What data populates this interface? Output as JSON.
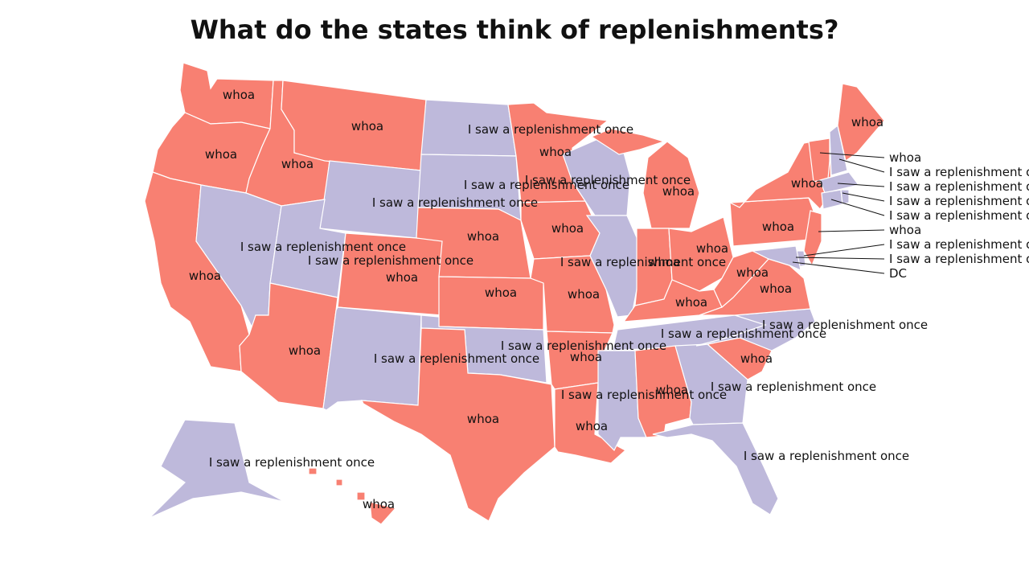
{
  "title": "What do the states think of replenishments?",
  "colors": {
    "whoa": "#F88072",
    "replenishment": "#BEB9DB",
    "border": "#ffffff",
    "text": "#111111"
  },
  "answers": {
    "whoa": "whoa",
    "replenishment": "I saw a replenishment once"
  },
  "callout_labels": [
    "whoa",
    "I saw a replenishment once",
    "I saw a replenishment once",
    "I saw a replenishment once",
    "I saw a replenishment once",
    "whoa",
    "I saw a replenishment once",
    "I saw a replenishment once",
    "DC"
  ],
  "states": [
    {
      "name": "WA",
      "category": "whoa"
    },
    {
      "name": "OR",
      "category": "whoa"
    },
    {
      "name": "CA",
      "category": "whoa"
    },
    {
      "name": "ID",
      "category": "whoa"
    },
    {
      "name": "NV",
      "category": "replenishment"
    },
    {
      "name": "MT",
      "category": "whoa"
    },
    {
      "name": "WY",
      "category": "replenishment"
    },
    {
      "name": "UT",
      "category": "replenishment"
    },
    {
      "name": "CO",
      "category": "whoa"
    },
    {
      "name": "AZ",
      "category": "whoa"
    },
    {
      "name": "NM",
      "category": "replenishment"
    },
    {
      "name": "ND",
      "category": "replenishment"
    },
    {
      "name": "SD",
      "category": "replenishment"
    },
    {
      "name": "NE",
      "category": "whoa"
    },
    {
      "name": "KS",
      "category": "whoa"
    },
    {
      "name": "OK",
      "category": "replenishment"
    },
    {
      "name": "TX",
      "category": "whoa"
    },
    {
      "name": "MN",
      "category": "whoa"
    },
    {
      "name": "IA",
      "category": "whoa"
    },
    {
      "name": "MO",
      "category": "whoa"
    },
    {
      "name": "AR",
      "category": "whoa"
    },
    {
      "name": "LA",
      "category": "whoa"
    },
    {
      "name": "WI",
      "category": "replenishment"
    },
    {
      "name": "IL",
      "category": "replenishment"
    },
    {
      "name": "MI",
      "category": "whoa"
    },
    {
      "name": "IN",
      "category": "whoa"
    },
    {
      "name": "OH",
      "category": "whoa"
    },
    {
      "name": "KY",
      "category": "whoa"
    },
    {
      "name": "TN",
      "category": "replenishment"
    },
    {
      "name": "MS",
      "category": "replenishment"
    },
    {
      "name": "AL",
      "category": "whoa"
    },
    {
      "name": "GA",
      "category": "replenishment"
    },
    {
      "name": "FL",
      "category": "replenishment"
    },
    {
      "name": "SC",
      "category": "whoa"
    },
    {
      "name": "NC",
      "category": "replenishment"
    },
    {
      "name": "VA",
      "category": "whoa"
    },
    {
      "name": "WV",
      "category": "whoa"
    },
    {
      "name": "PA",
      "category": "whoa"
    },
    {
      "name": "NY",
      "category": "whoa"
    },
    {
      "name": "VT",
      "category": "whoa"
    },
    {
      "name": "NH",
      "category": "replenishment"
    },
    {
      "name": "ME",
      "category": "whoa"
    },
    {
      "name": "MA",
      "category": "replenishment"
    },
    {
      "name": "CT",
      "category": "replenishment"
    },
    {
      "name": "RI",
      "category": "replenishment"
    },
    {
      "name": "NJ",
      "category": "whoa"
    },
    {
      "name": "DE",
      "category": "replenishment"
    },
    {
      "name": "MD",
      "category": "replenishment"
    },
    {
      "name": "AK",
      "category": "replenishment"
    },
    {
      "name": "HI",
      "category": "whoa"
    }
  ]
}
